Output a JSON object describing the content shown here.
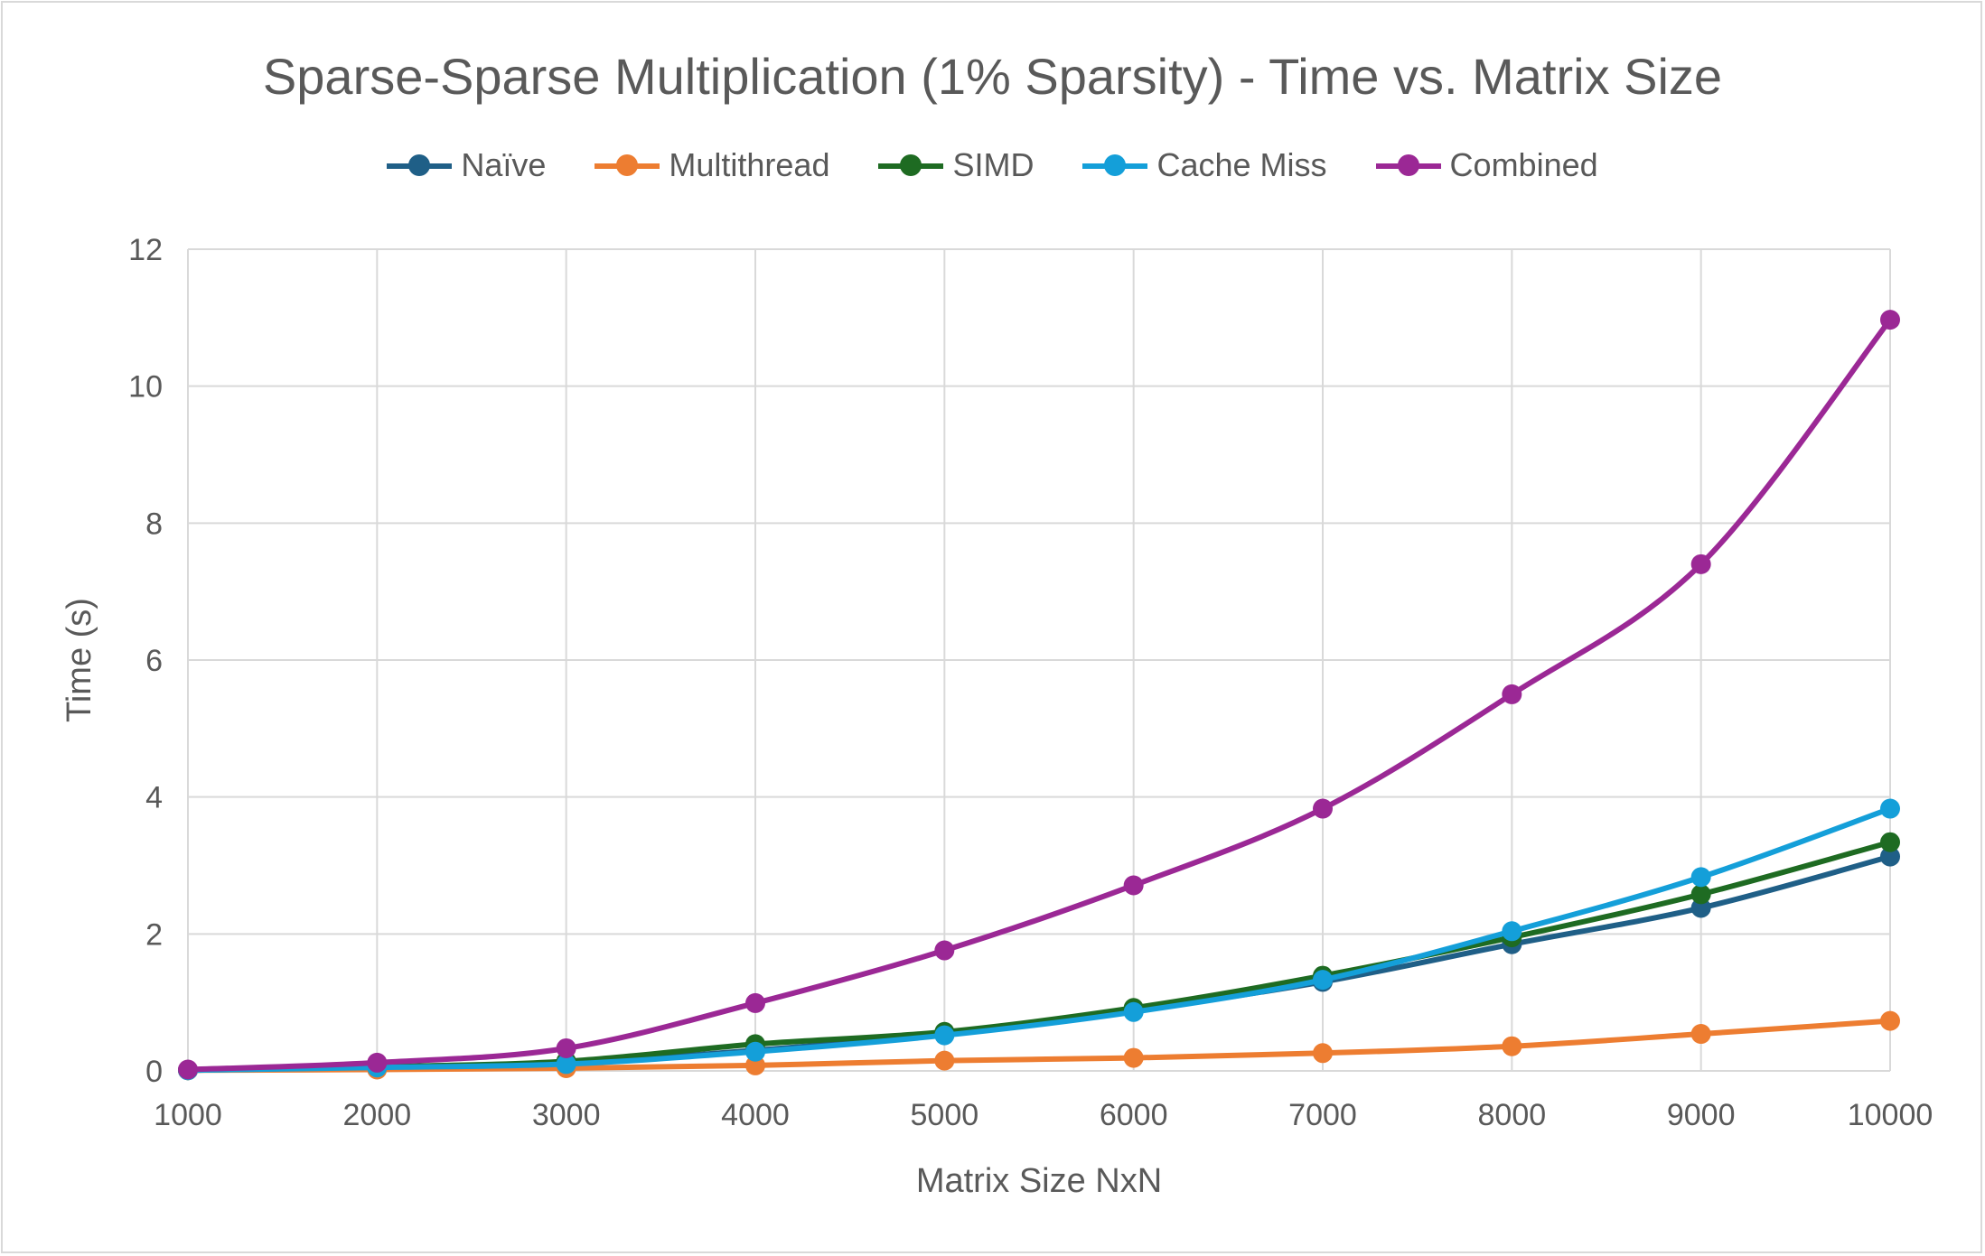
{
  "chart_data": {
    "type": "line",
    "title": "Sparse-Sparse Multiplication (1% Sparsity) - Time vs. Matrix Size",
    "xlabel": "Matrix Size NxN",
    "ylabel": "Time (s)",
    "x": [
      1000,
      2000,
      3000,
      4000,
      5000,
      6000,
      7000,
      8000,
      9000,
      10000
    ],
    "ylim": [
      0,
      12
    ],
    "yticks": [
      0,
      2,
      4,
      6,
      8,
      10,
      12
    ],
    "grid": true,
    "legend_position": "top",
    "smooth": true,
    "series": [
      {
        "name": "Naïve",
        "color": "#1f5f87",
        "values": [
          0.01,
          0.05,
          0.12,
          0.3,
          0.55,
          0.88,
          1.3,
          1.85,
          2.38,
          3.13
        ]
      },
      {
        "name": "Multithread",
        "color": "#ed7d31",
        "values": [
          0.01,
          0.02,
          0.04,
          0.08,
          0.15,
          0.19,
          0.26,
          0.36,
          0.54,
          0.73
        ]
      },
      {
        "name": "SIMD",
        "color": "#1e6b22",
        "values": [
          0.01,
          0.06,
          0.14,
          0.39,
          0.57,
          0.92,
          1.39,
          1.95,
          2.58,
          3.34
        ]
      },
      {
        "name": "Cache Miss",
        "color": "#149fd9",
        "values": [
          0.01,
          0.05,
          0.1,
          0.28,
          0.52,
          0.86,
          1.33,
          2.04,
          2.83,
          3.83
        ]
      },
      {
        "name": "Combined",
        "color": "#9b2895",
        "values": [
          0.02,
          0.12,
          0.33,
          0.99,
          1.76,
          2.71,
          3.83,
          5.5,
          7.4,
          10.97
        ]
      }
    ]
  }
}
